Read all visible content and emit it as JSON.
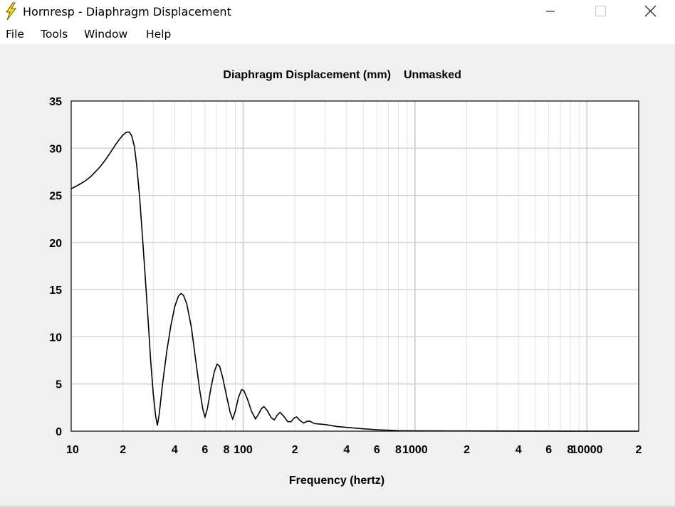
{
  "window": {
    "title": "Hornresp - Diaphragm Displacement",
    "icon": "lightning-bolt-icon",
    "controls": [
      "minimize-icon",
      "maximize-icon",
      "close-icon"
    ]
  },
  "menu": {
    "items": [
      "File",
      "Tools",
      "Window",
      "Help"
    ]
  },
  "chart_data": {
    "type": "line",
    "title": "Diaphragm Displacement (mm)",
    "subtitle": "Unmasked",
    "xlabel": "Frequency (hertz)",
    "ylabel": "",
    "xscale": "log",
    "xlim": [
      10,
      20000
    ],
    "ylim": [
      0,
      35
    ],
    "yticks": [
      0,
      5,
      10,
      15,
      20,
      25,
      30,
      35
    ],
    "xtick_labels": [
      {
        "x": 10,
        "label": "10"
      },
      {
        "x": 20,
        "label": "2"
      },
      {
        "x": 40,
        "label": "4"
      },
      {
        "x": 60,
        "label": "6"
      },
      {
        "x": 80,
        "label": "8"
      },
      {
        "x": 100,
        "label": "100"
      },
      {
        "x": 200,
        "label": "2"
      },
      {
        "x": 400,
        "label": "4"
      },
      {
        "x": 600,
        "label": "6"
      },
      {
        "x": 800,
        "label": "8"
      },
      {
        "x": 1000,
        "label": "1000"
      },
      {
        "x": 2000,
        "label": "2"
      },
      {
        "x": 4000,
        "label": "4"
      },
      {
        "x": 6000,
        "label": "6"
      },
      {
        "x": 8000,
        "label": "8"
      },
      {
        "x": 10000,
        "label": "10000"
      },
      {
        "x": 20000,
        "label": "2"
      }
    ],
    "grid": true,
    "series": [
      {
        "color": "#000000",
        "points": [
          [
            10,
            25.7
          ],
          [
            11,
            26.1
          ],
          [
            12,
            26.5
          ],
          [
            13,
            27.0
          ],
          [
            14,
            27.6
          ],
          [
            15,
            28.2
          ],
          [
            16,
            28.9
          ],
          [
            17,
            29.6
          ],
          [
            18,
            30.3
          ],
          [
            19,
            30.9
          ],
          [
            20,
            31.4
          ],
          [
            21,
            31.7
          ],
          [
            21.8,
            31.7
          ],
          [
            22.5,
            31.3
          ],
          [
            23.3,
            30.2
          ],
          [
            24,
            28.3
          ],
          [
            25,
            24.8
          ],
          [
            26,
            20.5
          ],
          [
            27,
            16.2
          ],
          [
            28,
            11.8
          ],
          [
            29,
            7.5
          ],
          [
            30,
            4.0
          ],
          [
            31,
            1.6
          ],
          [
            31.7,
            0.6
          ],
          [
            32.5,
            1.8
          ],
          [
            34,
            5.0
          ],
          [
            36,
            8.5
          ],
          [
            38,
            11.2
          ],
          [
            40,
            13.2
          ],
          [
            42,
            14.3
          ],
          [
            43.5,
            14.6
          ],
          [
            45,
            14.4
          ],
          [
            47,
            13.5
          ],
          [
            50,
            11.0
          ],
          [
            53,
            7.5
          ],
          [
            56,
            4.3
          ],
          [
            58.5,
            2.2
          ],
          [
            60,
            1.5
          ],
          [
            62,
            2.4
          ],
          [
            65,
            4.6
          ],
          [
            68,
            6.3
          ],
          [
            70.5,
            7.1
          ],
          [
            73,
            6.9
          ],
          [
            76,
            5.7
          ],
          [
            80,
            3.8
          ],
          [
            84,
            2.0
          ],
          [
            87,
            1.3
          ],
          [
            90,
            2.1
          ],
          [
            94,
            3.6
          ],
          [
            98,
            4.4
          ],
          [
            101,
            4.3
          ],
          [
            106,
            3.4
          ],
          [
            112,
            2.1
          ],
          [
            118,
            1.3
          ],
          [
            122,
            1.7
          ],
          [
            128,
            2.4
          ],
          [
            132,
            2.6
          ],
          [
            138,
            2.2
          ],
          [
            146,
            1.4
          ],
          [
            152,
            1.2
          ],
          [
            158,
            1.7
          ],
          [
            164,
            2.0
          ],
          [
            172,
            1.6
          ],
          [
            182,
            1.0
          ],
          [
            190,
            1.0
          ],
          [
            198,
            1.4
          ],
          [
            205,
            1.5
          ],
          [
            215,
            1.1
          ],
          [
            225,
            0.85
          ],
          [
            235,
            1.05
          ],
          [
            245,
            1.05
          ],
          [
            260,
            0.8
          ],
          [
            280,
            0.75
          ],
          [
            300,
            0.7
          ],
          [
            350,
            0.5
          ],
          [
            400,
            0.4
          ],
          [
            500,
            0.25
          ],
          [
            600,
            0.15
          ],
          [
            700,
            0.1
          ],
          [
            800,
            0.05
          ],
          [
            1000,
            0.03
          ],
          [
            2000,
            0.02
          ],
          [
            5000,
            0.01
          ],
          [
            10000,
            0.0
          ],
          [
            20000,
            0.0
          ]
        ]
      }
    ]
  }
}
